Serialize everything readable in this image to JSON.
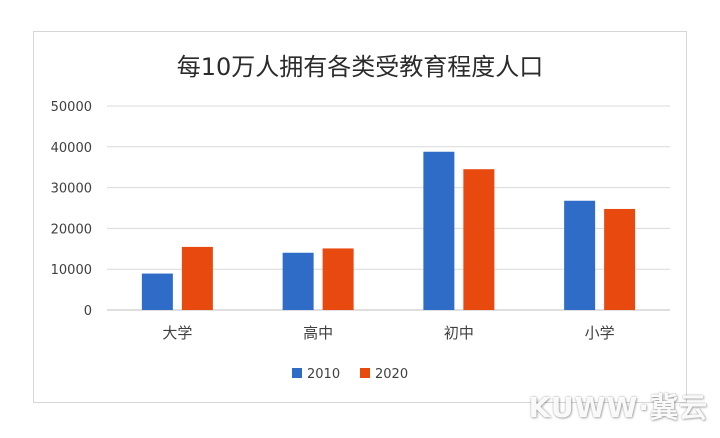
{
  "chart_data": {
    "type": "bar",
    "title": "每10万人拥有各类受教育程度人口",
    "categories": [
      "大学",
      "高中",
      "初中",
      "小学"
    ],
    "series": [
      {
        "name": "2010",
        "values": [
          8930,
          14032,
          38788,
          26779
        ],
        "color": "#2f6cc7"
      },
      {
        "name": "2020",
        "values": [
          15467,
          15088,
          34507,
          24767
        ],
        "color": "#e8490f"
      }
    ],
    "ylim": [
      0,
      50000
    ],
    "yticks": [
      0,
      10000,
      20000,
      30000,
      40000,
      50000
    ],
    "grid": true,
    "legend": "bottom"
  },
  "watermark": {
    "text": "KUWW·冀云"
  }
}
